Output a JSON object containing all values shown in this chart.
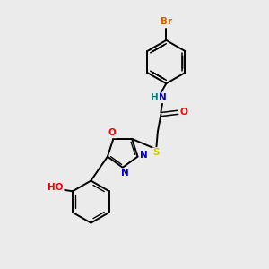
{
  "bg_color": "#ebebeb",
  "bond_color": "#000000",
  "atom_colors": {
    "N": "#0000cc",
    "O": "#ff0000",
    "S": "#cccc00",
    "Br": "#cc6600",
    "NH_color": "#008080"
  },
  "lw": 1.4,
  "lw_inner": 1.1,
  "fontsize": 7.5
}
